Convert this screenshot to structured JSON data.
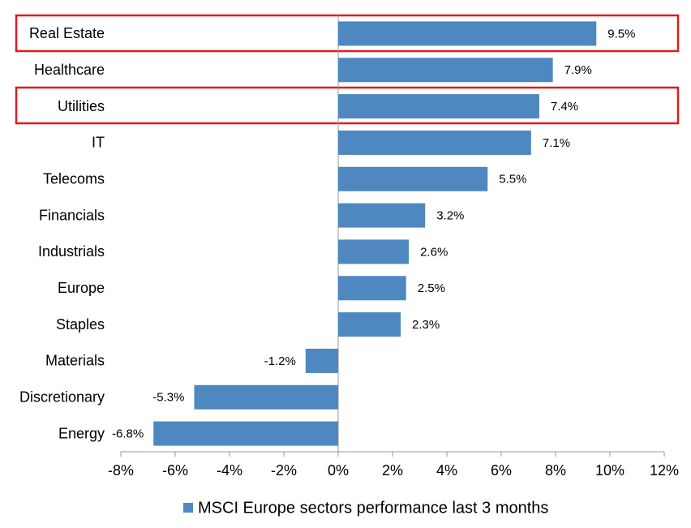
{
  "chart_data": {
    "type": "bar",
    "orientation": "horizontal",
    "categories": [
      "Real Estate",
      "Healthcare",
      "Utilities",
      "IT",
      "Telecoms",
      "Financials",
      "Industrials",
      "Europe",
      "Staples",
      "Materials",
      "Discretionary",
      "Energy"
    ],
    "series": [
      {
        "name": "MSCI Europe sectors performance last 3 months",
        "color": "#4f88c0",
        "values": [
          9.5,
          7.9,
          7.4,
          7.1,
          5.5,
          3.2,
          2.6,
          2.5,
          2.3,
          -1.2,
          -5.3,
          -6.8
        ],
        "value_labels": [
          "9.5%",
          "7.9%",
          "7.4%",
          "7.1%",
          "5.5%",
          "3.2%",
          "2.6%",
          "2.5%",
          "2.3%",
          "-1.2%",
          "-5.3%",
          "-6.8%"
        ]
      }
    ],
    "xlim": [
      -8,
      12
    ],
    "xticks": [
      {
        "value": -8,
        "label": "-8%"
      },
      {
        "value": -6,
        "label": "-6%"
      },
      {
        "value": -4,
        "label": "-4%"
      },
      {
        "value": -2,
        "label": "-2%"
      },
      {
        "value": 0,
        "label": "0%"
      },
      {
        "value": 2,
        "label": "2%"
      },
      {
        "value": 4,
        "label": "4%"
      },
      {
        "value": 6,
        "label": "6%"
      },
      {
        "value": 8,
        "label": "8%"
      },
      {
        "value": 10,
        "label": "10%"
      },
      {
        "value": 12,
        "label": "12%"
      }
    ],
    "legend": "bottom"
  }
}
